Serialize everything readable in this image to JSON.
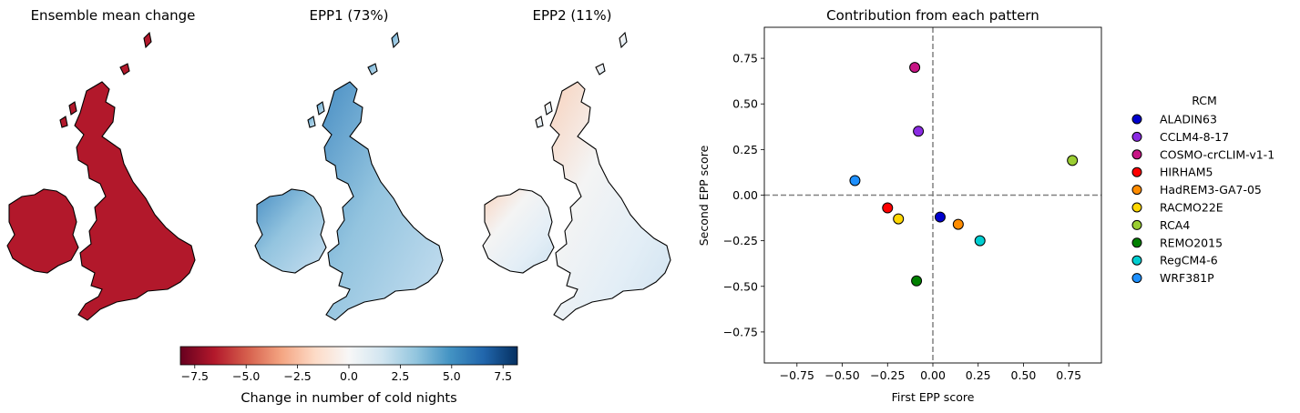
{
  "maps": [
    {
      "title": "Ensemble mean change",
      "palette": "uniform-red"
    },
    {
      "title": "EPP1 (73%)",
      "palette": "blue"
    },
    {
      "title": "EPP2 (11%)",
      "palette": "mixed"
    }
  ],
  "colorbar": {
    "label": "Change in number of cold nights",
    "ticks": [
      "−7.5",
      "−5.0",
      "−2.5",
      "0.0",
      "2.5",
      "5.0",
      "7.5"
    ],
    "tick_values": [
      -7.5,
      -5.0,
      -2.5,
      0.0,
      2.5,
      5.0,
      7.5
    ],
    "range": [
      -8.2,
      8.2
    ],
    "colors": [
      "#67001f",
      "#b2182b",
      "#d6604d",
      "#f4a582",
      "#fddbc7",
      "#f7f7f7",
      "#d1e5f0",
      "#92c5de",
      "#4393c3",
      "#2166ac",
      "#053061"
    ]
  },
  "chart_data": {
    "type": "scatter",
    "title": "Contribution from each pattern",
    "xlabel": "First EPP score",
    "ylabel": "Second EPP score",
    "xlim": [
      -0.93,
      0.93
    ],
    "ylim": [
      -0.92,
      0.92
    ],
    "xticks": [
      "−0.75",
      "−0.50",
      "−0.25",
      "0.00",
      "0.25",
      "0.50",
      "0.75"
    ],
    "xtick_values": [
      -0.75,
      -0.5,
      -0.25,
      0.0,
      0.25,
      0.5,
      0.75
    ],
    "yticks": [
      "−0.75",
      "−0.50",
      "−0.25",
      "0.00",
      "0.25",
      "0.50",
      "0.75"
    ],
    "ytick_values": [
      -0.75,
      -0.5,
      -0.25,
      0.0,
      0.25,
      0.5,
      0.75
    ],
    "reference_lines": {
      "x": 0,
      "y": 0,
      "style": "dashed",
      "color": "#808080"
    },
    "legend": {
      "title": "RCM",
      "placement": "right-outside"
    },
    "series": [
      {
        "name": "ALADIN63",
        "color": "#0000cd",
        "x": 0.04,
        "y": -0.12
      },
      {
        "name": "CCLM4-8-17",
        "color": "#8a2be2",
        "x": -0.08,
        "y": 0.35
      },
      {
        "name": "COSMO-crCLIM-v1-1",
        "color": "#c71585",
        "x": -0.1,
        "y": 0.7
      },
      {
        "name": "HIRHAM5",
        "color": "#ff0000",
        "x": -0.25,
        "y": -0.07
      },
      {
        "name": "HadREM3-GA7-05",
        "color": "#ff8c00",
        "x": 0.14,
        "y": -0.16
      },
      {
        "name": "RACMO22E",
        "color": "#ffd700",
        "x": -0.19,
        "y": -0.13
      },
      {
        "name": "RCA4",
        "color": "#9acd32",
        "x": 0.77,
        "y": 0.19
      },
      {
        "name": "REMO2015",
        "color": "#008000",
        "x": -0.09,
        "y": -0.47
      },
      {
        "name": "RegCM4-6",
        "color": "#00ced1",
        "x": 0.26,
        "y": -0.25
      },
      {
        "name": "WRF381P",
        "color": "#1e90ff",
        "x": -0.43,
        "y": 0.08
      }
    ]
  }
}
